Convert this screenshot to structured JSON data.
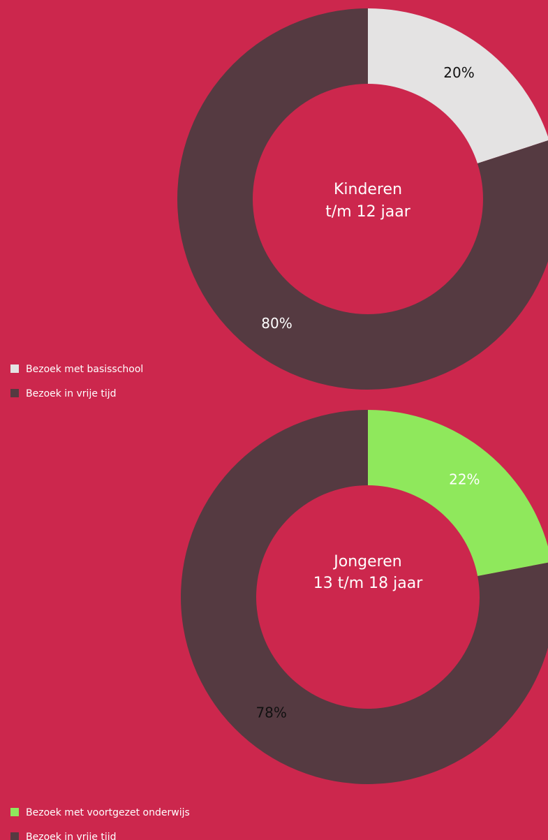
{
  "chart_data": [
    {
      "type": "donut",
      "title_lines": [
        "Kinderen",
        "t/m 12 jaar"
      ],
      "categories": [
        "Bezoek met basisschool",
        "Bezoek in vrije tijd"
      ],
      "values": [
        20,
        80
      ],
      "value_labels": [
        "20%",
        "80%"
      ],
      "colors": [
        "#e4e3e3",
        "#553a41"
      ],
      "label_colors": [
        "#111111",
        "#ffffff"
      ]
    },
    {
      "type": "donut",
      "title_lines": [
        "Jongeren",
        "13 t/m 18 jaar"
      ],
      "categories": [
        "Bezoek met voortgezet onderwijs",
        "Bezoek in vrije tijd"
      ],
      "values": [
        22,
        78
      ],
      "value_labels": [
        "22%",
        "78%"
      ],
      "colors": [
        "#8fe85c",
        "#553a41"
      ],
      "label_colors": [
        "#ffffff",
        "#111111"
      ]
    }
  ]
}
